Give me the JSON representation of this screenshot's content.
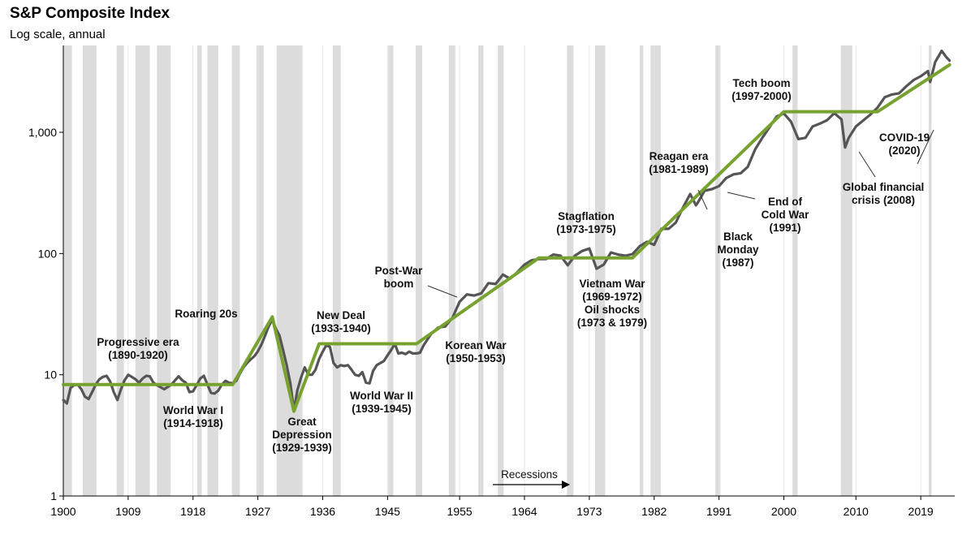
{
  "chart_data": {
    "type": "line",
    "title": "S&P Composite Index",
    "subtitle": "Log scale, annual",
    "yscale": "log",
    "ylim": [
      1,
      5000
    ],
    "xlim": [
      1900,
      2023.5
    ],
    "y_ticks": [
      {
        "value": 1,
        "label": "1"
      },
      {
        "value": 10,
        "label": "10"
      },
      {
        "value": 100,
        "label": "100"
      },
      {
        "value": 1000,
        "label": "1,000"
      }
    ],
    "x_ticks": [
      1900,
      1909,
      1918,
      1927,
      1936,
      1945,
      1955,
      1964,
      1973,
      1982,
      1991,
      2000,
      2010,
      2019
    ],
    "grid": "vertical",
    "recession_legend": "Recessions",
    "recessions": [
      [
        1900.0,
        1901.2
      ],
      [
        1902.7,
        1904.6
      ],
      [
        1907.4,
        1908.4
      ],
      [
        1910.0,
        1912.0
      ],
      [
        1913.0,
        1914.9
      ],
      [
        1918.6,
        1919.2
      ],
      [
        1920.0,
        1921.5
      ],
      [
        1923.4,
        1924.5
      ],
      [
        1926.8,
        1927.8
      ],
      [
        1929.6,
        1933.2
      ],
      [
        1937.4,
        1938.5
      ],
      [
        1945.1,
        1945.8
      ],
      [
        1948.9,
        1949.8
      ],
      [
        1953.5,
        1954.4
      ],
      [
        1957.6,
        1958.3
      ],
      [
        1960.3,
        1961.1
      ],
      [
        1969.9,
        1970.8
      ],
      [
        1973.8,
        1975.2
      ],
      [
        1980.0,
        1980.5
      ],
      [
        1981.5,
        1982.9
      ],
      [
        1990.5,
        1991.2
      ],
      [
        2001.2,
        2001.9
      ],
      [
        2007.9,
        2009.5
      ],
      [
        2020.1,
        2020.5
      ]
    ],
    "series": [
      {
        "x": [
          1900,
          1900.5,
          1901,
          1901.5,
          1902,
          1902.5,
          1903,
          1903.5,
          1904,
          1904.5,
          1905,
          1905.5,
          1906,
          1906.5,
          1907,
          1907.5,
          1908,
          1908.5,
          1909,
          1909.5,
          1910,
          1910.5,
          1911,
          1911.5,
          1912,
          1912.5,
          1913,
          1913.5,
          1914,
          1915,
          1916,
          1916.5,
          1917,
          1917.5,
          1918,
          1918.5,
          1919,
          1919.5,
          1920,
          1920.5,
          1921,
          1921.5,
          1922,
          1922.5,
          1923,
          1923.5,
          1924,
          1924.5,
          1925,
          1925.5,
          1926,
          1926.5,
          1927,
          1927.5,
          1928,
          1928.5,
          1929,
          1929.5,
          1930,
          1930.5,
          1931,
          1931.5,
          1932,
          1932.5,
          1933,
          1933.5,
          1934,
          1934.5,
          1935,
          1935.5,
          1936,
          1936.5,
          1937,
          1937.5,
          1938,
          1938.5,
          1939,
          1939.5,
          1940,
          1940.5,
          1941,
          1941.5,
          1942,
          1942.5,
          1943,
          1943.5,
          1944,
          1944.5,
          1945,
          1945.5,
          1946,
          1946.5,
          1947,
          1947.5,
          1948,
          1948.5,
          1949,
          1949.5,
          1950,
          1951,
          1952,
          1953,
          1954,
          1955,
          1956,
          1957,
          1958,
          1959,
          1960,
          1961,
          1962,
          1963,
          1964,
          1965,
          1966,
          1967,
          1968,
          1969,
          1970,
          1971,
          1972,
          1973,
          1974,
          1975,
          1976,
          1977,
          1978,
          1979,
          1980,
          1981,
          1982,
          1983,
          1984,
          1985,
          1986,
          1987,
          1987.8,
          1988,
          1989,
          1990,
          1991,
          1992,
          1993,
          1994,
          1995,
          1996,
          1997,
          1998,
          1999,
          2000,
          2001,
          2002,
          2003,
          2004,
          2005,
          2006,
          2007,
          2008,
          2008.5,
          2009,
          2010,
          2011,
          2012,
          2013,
          2014,
          2015,
          2016,
          2017,
          2018,
          2019,
          2020,
          2020.3,
          2021,
          2021.9,
          2022.5,
          2023
        ],
        "values": [
          6.2,
          5.8,
          7.8,
          8.2,
          8.3,
          7.6,
          6.6,
          6.3,
          7.2,
          8.3,
          9.2,
          9.6,
          9.8,
          8.8,
          7.2,
          6.2,
          7.6,
          9.0,
          10.0,
          9.6,
          9.2,
          8.6,
          9.3,
          9.8,
          9.7,
          8.6,
          8.2,
          7.9,
          7.6,
          8.3,
          9.7,
          9.0,
          8.6,
          7.2,
          7.3,
          8.2,
          9.3,
          9.8,
          8.3,
          7.1,
          7.0,
          7.4,
          8.3,
          8.9,
          8.6,
          8.5,
          8.9,
          10.2,
          11.5,
          12.5,
          13.4,
          14.2,
          15.6,
          17.8,
          21.0,
          25.0,
          28.5,
          24.0,
          21.0,
          16.0,
          12.0,
          8.5,
          5.1,
          7.5,
          9.5,
          11.5,
          10.0,
          10.0,
          11.0,
          13.5,
          15.5,
          17.5,
          17.0,
          12.5,
          11.5,
          12.0,
          11.8,
          12.0,
          11.0,
          10.0,
          9.8,
          10.5,
          8.6,
          8.5,
          10.8,
          12.0,
          12.5,
          13.0,
          14.5,
          16.0,
          18.0,
          15.0,
          15.2,
          14.8,
          15.5,
          15.0,
          15.0,
          15.2,
          17.5,
          21.5,
          24.5,
          25.0,
          29.5,
          40.0,
          46.0,
          45.0,
          47.0,
          57.0,
          56.0,
          67.0,
          62.0,
          70.0,
          81.0,
          88.0,
          90.0,
          90.0,
          98.0,
          96.0,
          80.0,
          96.0,
          105.0,
          110.0,
          75.0,
          81.0,
          102.0,
          98.0,
          96.0,
          99.0,
          115.0,
          125.0,
          118.0,
          160.0,
          160.0,
          180.0,
          240.0,
          310.0,
          250.0,
          260.0,
          330.0,
          340.0,
          360.0,
          420.0,
          450.0,
          460.0,
          520.0,
          720.0,
          900.0,
          1100.0,
          1350.0,
          1430.0,
          1220.0,
          880.0,
          900.0,
          1120.0,
          1180.0,
          1260.0,
          1440.0,
          1280.0,
          750.0,
          900.0,
          1120.0,
          1250.0,
          1400.0,
          1600.0,
          1950.0,
          2050.0,
          2100.0,
          2400.0,
          2700.0,
          2900.0,
          3200.0,
          2600.0,
          3800.0,
          4700.0,
          4200.0,
          3900.0
        ]
      },
      {
        "x": [
          1900,
          1923.5,
          1929,
          1932,
          1935.5,
          1949,
          1966,
          1979,
          2000,
          2013,
          2023
        ],
        "values": [
          8.3,
          8.3,
          30,
          5.0,
          18,
          18,
          92,
          92,
          1480,
          1480,
          3600
        ]
      }
    ],
    "annotations": [
      {
        "lines": [
          "Progressive era",
          "(1890-1920)"
        ]
      },
      {
        "lines": [
          "World War I",
          "(1914-1918)"
        ]
      },
      {
        "lines": [
          "Roaring 20s"
        ]
      },
      {
        "lines": [
          "Great",
          "Depression",
          "(1929-1939)"
        ]
      },
      {
        "lines": [
          "New Deal",
          "(1933-1940)"
        ]
      },
      {
        "lines": [
          "World War II",
          "(1939-1945)"
        ]
      },
      {
        "lines": [
          "Post-War",
          "boom"
        ]
      },
      {
        "lines": [
          "Korean War",
          "(1950-1953)"
        ]
      },
      {
        "lines": [
          "Stagflation",
          "(1973-1975)"
        ]
      },
      {
        "lines": [
          "Vietnam War",
          "(1969-1972)",
          "Oil shocks",
          "(1973 & 1979)"
        ]
      },
      {
        "lines": [
          "Reagan era",
          "(1981-1989)"
        ]
      },
      {
        "lines": [
          "Black",
          "Monday",
          "(1987)"
        ]
      },
      {
        "lines": [
          "End of",
          "Cold War",
          "(1991)"
        ]
      },
      {
        "lines": [
          "Tech boom",
          "(1997-2000)"
        ]
      },
      {
        "lines": [
          "Global financial",
          "crisis (2008)"
        ]
      },
      {
        "lines": [
          "COVID-19",
          "(2020)"
        ]
      }
    ],
    "colors": {
      "index": "#555555",
      "trend": "#78a22f",
      "recession": "#dcdcdc",
      "grid": "#e6e6e6"
    }
  }
}
